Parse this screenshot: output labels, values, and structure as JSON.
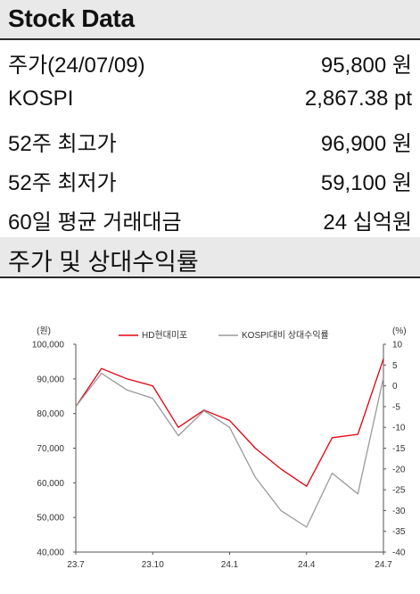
{
  "stock_data": {
    "title": "Stock Data",
    "rows": [
      {
        "label": "주가(24/07/09)",
        "value": "95,800 원"
      },
      {
        "label": "KOSPI",
        "value": "2,867.38 pt"
      },
      {
        "label": "52주 최고가",
        "value": "96,900 원"
      },
      {
        "label": "52주 최저가",
        "value": "59,100 원"
      },
      {
        "label": "60일 평균 거래대금",
        "value": "24 십억원"
      }
    ]
  },
  "relative_return": {
    "title": "주가 및 상대수익률"
  },
  "chart_data": {
    "type": "line",
    "x": [
      "23.7",
      "23.8",
      "23.9",
      "23.10",
      "23.11",
      "23.12",
      "24.1",
      "24.2",
      "24.3",
      "24.4",
      "24.5",
      "24.6",
      "24.7"
    ],
    "x_tick_labels": [
      "23.7",
      "23.10",
      "24.1",
      "24.4",
      "24.7"
    ],
    "left_axis": {
      "unit": "(원)",
      "ylim": [
        40000,
        100000
      ],
      "ticks": [
        "40,000",
        "50,000",
        "60,000",
        "70,000",
        "80,000",
        "90,000",
        "100,000"
      ]
    },
    "right_axis": {
      "unit": "(%)",
      "ylim": [
        -40,
        10
      ],
      "ticks": [
        "-40",
        "-35",
        "-30",
        "-25",
        "-20",
        "-15",
        "-10",
        "-5",
        "0",
        "5",
        "10"
      ]
    },
    "legend_position": "top",
    "series": [
      {
        "name": "HD현대미포",
        "axis": "left",
        "color": "#e3000f",
        "values": [
          82000,
          93000,
          90000,
          88000,
          76000,
          81000,
          78000,
          70000,
          64000,
          59000,
          73000,
          74000,
          95800
        ]
      },
      {
        "name": "KOSPI대비 상대수익률",
        "axis": "right",
        "color": "#9a9a9a",
        "values": [
          -5,
          3,
          -1,
          -3,
          -12,
          -6,
          -10,
          -22,
          -30,
          -34,
          -21,
          -26,
          2
        ]
      }
    ]
  }
}
